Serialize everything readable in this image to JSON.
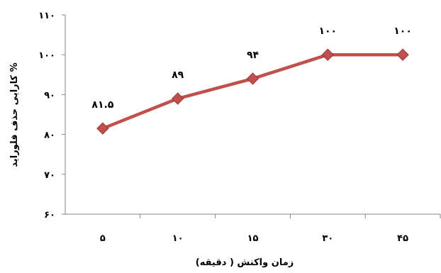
{
  "chart_data": {
    "type": "line",
    "title": "",
    "xlabel": "زمان واکنش ( دقیقه)",
    "ylabel": "کارایی حذف فلوراید %",
    "categories": [
      "۵",
      "۱۰",
      "۱۵",
      "۳۰",
      "۴۵"
    ],
    "x": [
      5,
      10,
      15,
      30,
      45
    ],
    "series": [
      {
        "values": [
          81.5,
          89,
          94,
          100,
          100
        ],
        "data_labels": [
          "۸۱.۵",
          "۸۹",
          "۹۴",
          "۱۰۰",
          "۱۰۰"
        ],
        "color": "#C0504D",
        "marker": "diamond"
      }
    ],
    "ylim": [
      60,
      110
    ],
    "yticks": [
      60,
      70,
      80,
      90,
      100,
      110
    ],
    "ytick_labels": [
      "۶۰",
      "۷۰",
      "۸۰",
      "۹۰",
      "۱۰۰",
      "۱۱۰"
    ],
    "grid": false,
    "legend": "none"
  }
}
